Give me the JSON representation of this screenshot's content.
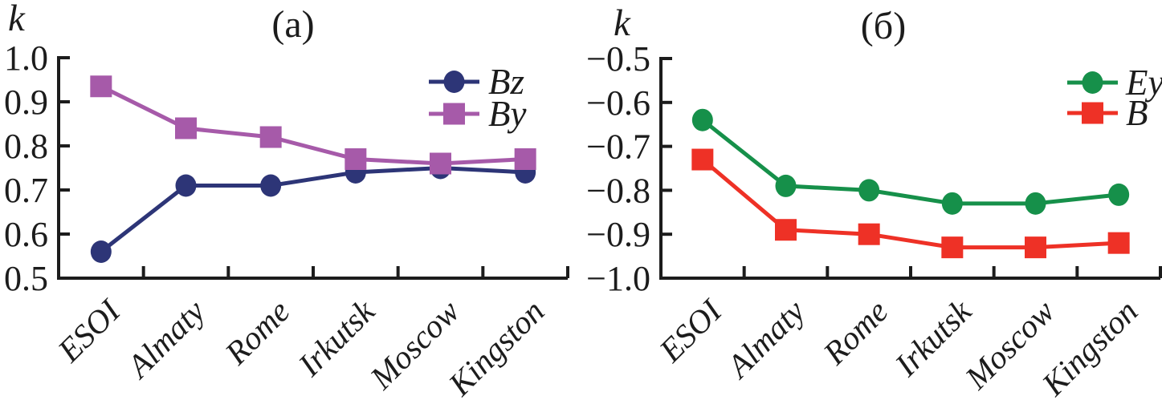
{
  "figure": {
    "background": "#ffffff",
    "axis_color": "#1c1c1c"
  },
  "chart_data": [
    {
      "type": "line",
      "panel_id": "a",
      "title": "(a)",
      "ylabel": "k",
      "xlabel": "",
      "grid": false,
      "legend_position": "top-right",
      "categories": [
        "ESOI",
        "Almaty",
        "Rome",
        "Irkutsk",
        "Moscow",
        "Kingston"
      ],
      "ylim": [
        0.5,
        1.0
      ],
      "yticks": [
        1.0,
        0.9,
        0.8,
        0.7,
        0.6,
        0.5
      ],
      "ytick_labels": [
        "1.0",
        "0.9",
        "0.8",
        "0.7",
        "0.6",
        "0.5"
      ],
      "series": [
        {
          "name": "Bz",
          "marker": "circle",
          "color": "#2d3577",
          "values": [
            0.56,
            0.71,
            0.71,
            0.74,
            0.75,
            0.74
          ]
        },
        {
          "name": "By",
          "marker": "square",
          "color": "#a65aa9",
          "values": [
            0.935,
            0.84,
            0.82,
            0.77,
            0.76,
            0.77
          ]
        }
      ]
    },
    {
      "type": "line",
      "panel_id": "b",
      "title": "(б)",
      "ylabel": "k",
      "xlabel": "",
      "grid": false,
      "legend_position": "top-right",
      "categories": [
        "ESOI",
        "Almaty",
        "Rome",
        "Irkutsk",
        "Moscow",
        "Kingston"
      ],
      "ylim": [
        -1.0,
        -0.5
      ],
      "yticks": [
        -0.5,
        -0.6,
        -0.7,
        -0.8,
        -0.9,
        -1.0
      ],
      "ytick_labels": [
        "−0.5",
        "−0.6",
        "−0.7",
        "−0.8",
        "−0.9",
        "−1.0"
      ],
      "series": [
        {
          "name": "Ey",
          "marker": "circle",
          "color": "#16904a",
          "values": [
            -0.64,
            -0.79,
            -0.8,
            -0.83,
            -0.83,
            -0.81
          ]
        },
        {
          "name": "B",
          "marker": "square",
          "color": "#ee3126",
          "values": [
            -0.73,
            -0.89,
            -0.9,
            -0.93,
            -0.93,
            -0.92
          ]
        }
      ]
    }
  ]
}
